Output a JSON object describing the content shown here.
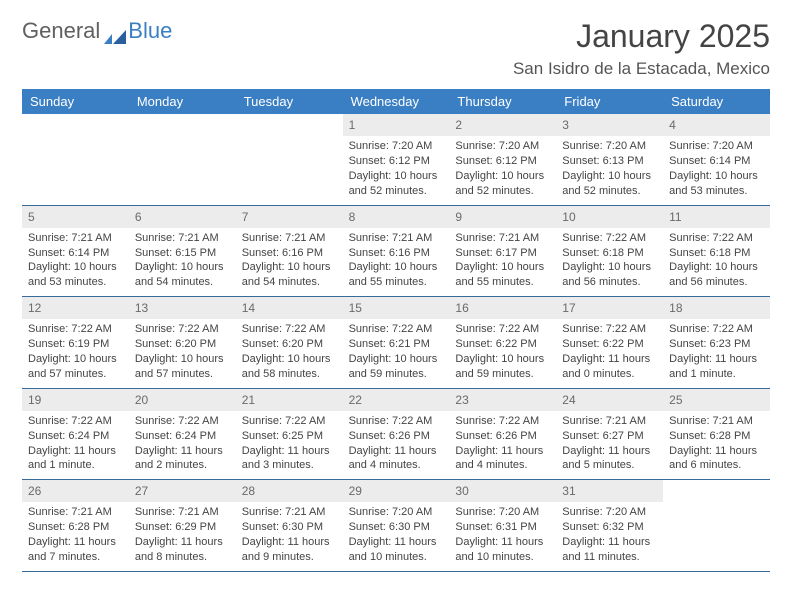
{
  "logo": {
    "text1": "General",
    "text2": "Blue"
  },
  "title": "January 2025",
  "location": "San Isidro de la Estacada, Mexico",
  "colors": {
    "header_bg": "#3a7fc4",
    "header_text": "#ffffff",
    "daynum_bg": "#ececec",
    "week_border": "#3a6a9a",
    "body_text": "#444444"
  },
  "day_headers": [
    "Sunday",
    "Monday",
    "Tuesday",
    "Wednesday",
    "Thursday",
    "Friday",
    "Saturday"
  ],
  "weeks": [
    [
      null,
      null,
      null,
      {
        "n": "1",
        "sr": "Sunrise: 7:20 AM",
        "ss": "Sunset: 6:12 PM",
        "d1": "Daylight: 10 hours",
        "d2": "and 52 minutes."
      },
      {
        "n": "2",
        "sr": "Sunrise: 7:20 AM",
        "ss": "Sunset: 6:12 PM",
        "d1": "Daylight: 10 hours",
        "d2": "and 52 minutes."
      },
      {
        "n": "3",
        "sr": "Sunrise: 7:20 AM",
        "ss": "Sunset: 6:13 PM",
        "d1": "Daylight: 10 hours",
        "d2": "and 52 minutes."
      },
      {
        "n": "4",
        "sr": "Sunrise: 7:20 AM",
        "ss": "Sunset: 6:14 PM",
        "d1": "Daylight: 10 hours",
        "d2": "and 53 minutes."
      }
    ],
    [
      {
        "n": "5",
        "sr": "Sunrise: 7:21 AM",
        "ss": "Sunset: 6:14 PM",
        "d1": "Daylight: 10 hours",
        "d2": "and 53 minutes."
      },
      {
        "n": "6",
        "sr": "Sunrise: 7:21 AM",
        "ss": "Sunset: 6:15 PM",
        "d1": "Daylight: 10 hours",
        "d2": "and 54 minutes."
      },
      {
        "n": "7",
        "sr": "Sunrise: 7:21 AM",
        "ss": "Sunset: 6:16 PM",
        "d1": "Daylight: 10 hours",
        "d2": "and 54 minutes."
      },
      {
        "n": "8",
        "sr": "Sunrise: 7:21 AM",
        "ss": "Sunset: 6:16 PM",
        "d1": "Daylight: 10 hours",
        "d2": "and 55 minutes."
      },
      {
        "n": "9",
        "sr": "Sunrise: 7:21 AM",
        "ss": "Sunset: 6:17 PM",
        "d1": "Daylight: 10 hours",
        "d2": "and 55 minutes."
      },
      {
        "n": "10",
        "sr": "Sunrise: 7:22 AM",
        "ss": "Sunset: 6:18 PM",
        "d1": "Daylight: 10 hours",
        "d2": "and 56 minutes."
      },
      {
        "n": "11",
        "sr": "Sunrise: 7:22 AM",
        "ss": "Sunset: 6:18 PM",
        "d1": "Daylight: 10 hours",
        "d2": "and 56 minutes."
      }
    ],
    [
      {
        "n": "12",
        "sr": "Sunrise: 7:22 AM",
        "ss": "Sunset: 6:19 PM",
        "d1": "Daylight: 10 hours",
        "d2": "and 57 minutes."
      },
      {
        "n": "13",
        "sr": "Sunrise: 7:22 AM",
        "ss": "Sunset: 6:20 PM",
        "d1": "Daylight: 10 hours",
        "d2": "and 57 minutes."
      },
      {
        "n": "14",
        "sr": "Sunrise: 7:22 AM",
        "ss": "Sunset: 6:20 PM",
        "d1": "Daylight: 10 hours",
        "d2": "and 58 minutes."
      },
      {
        "n": "15",
        "sr": "Sunrise: 7:22 AM",
        "ss": "Sunset: 6:21 PM",
        "d1": "Daylight: 10 hours",
        "d2": "and 59 minutes."
      },
      {
        "n": "16",
        "sr": "Sunrise: 7:22 AM",
        "ss": "Sunset: 6:22 PM",
        "d1": "Daylight: 10 hours",
        "d2": "and 59 minutes."
      },
      {
        "n": "17",
        "sr": "Sunrise: 7:22 AM",
        "ss": "Sunset: 6:22 PM",
        "d1": "Daylight: 11 hours",
        "d2": "and 0 minutes."
      },
      {
        "n": "18",
        "sr": "Sunrise: 7:22 AM",
        "ss": "Sunset: 6:23 PM",
        "d1": "Daylight: 11 hours",
        "d2": "and 1 minute."
      }
    ],
    [
      {
        "n": "19",
        "sr": "Sunrise: 7:22 AM",
        "ss": "Sunset: 6:24 PM",
        "d1": "Daylight: 11 hours",
        "d2": "and 1 minute."
      },
      {
        "n": "20",
        "sr": "Sunrise: 7:22 AM",
        "ss": "Sunset: 6:24 PM",
        "d1": "Daylight: 11 hours",
        "d2": "and 2 minutes."
      },
      {
        "n": "21",
        "sr": "Sunrise: 7:22 AM",
        "ss": "Sunset: 6:25 PM",
        "d1": "Daylight: 11 hours",
        "d2": "and 3 minutes."
      },
      {
        "n": "22",
        "sr": "Sunrise: 7:22 AM",
        "ss": "Sunset: 6:26 PM",
        "d1": "Daylight: 11 hours",
        "d2": "and 4 minutes."
      },
      {
        "n": "23",
        "sr": "Sunrise: 7:22 AM",
        "ss": "Sunset: 6:26 PM",
        "d1": "Daylight: 11 hours",
        "d2": "and 4 minutes."
      },
      {
        "n": "24",
        "sr": "Sunrise: 7:21 AM",
        "ss": "Sunset: 6:27 PM",
        "d1": "Daylight: 11 hours",
        "d2": "and 5 minutes."
      },
      {
        "n": "25",
        "sr": "Sunrise: 7:21 AM",
        "ss": "Sunset: 6:28 PM",
        "d1": "Daylight: 11 hours",
        "d2": "and 6 minutes."
      }
    ],
    [
      {
        "n": "26",
        "sr": "Sunrise: 7:21 AM",
        "ss": "Sunset: 6:28 PM",
        "d1": "Daylight: 11 hours",
        "d2": "and 7 minutes."
      },
      {
        "n": "27",
        "sr": "Sunrise: 7:21 AM",
        "ss": "Sunset: 6:29 PM",
        "d1": "Daylight: 11 hours",
        "d2": "and 8 minutes."
      },
      {
        "n": "28",
        "sr": "Sunrise: 7:21 AM",
        "ss": "Sunset: 6:30 PM",
        "d1": "Daylight: 11 hours",
        "d2": "and 9 minutes."
      },
      {
        "n": "29",
        "sr": "Sunrise: 7:20 AM",
        "ss": "Sunset: 6:30 PM",
        "d1": "Daylight: 11 hours",
        "d2": "and 10 minutes."
      },
      {
        "n": "30",
        "sr": "Sunrise: 7:20 AM",
        "ss": "Sunset: 6:31 PM",
        "d1": "Daylight: 11 hours",
        "d2": "and 10 minutes."
      },
      {
        "n": "31",
        "sr": "Sunrise: 7:20 AM",
        "ss": "Sunset: 6:32 PM",
        "d1": "Daylight: 11 hours",
        "d2": "and 11 minutes."
      },
      null
    ]
  ]
}
